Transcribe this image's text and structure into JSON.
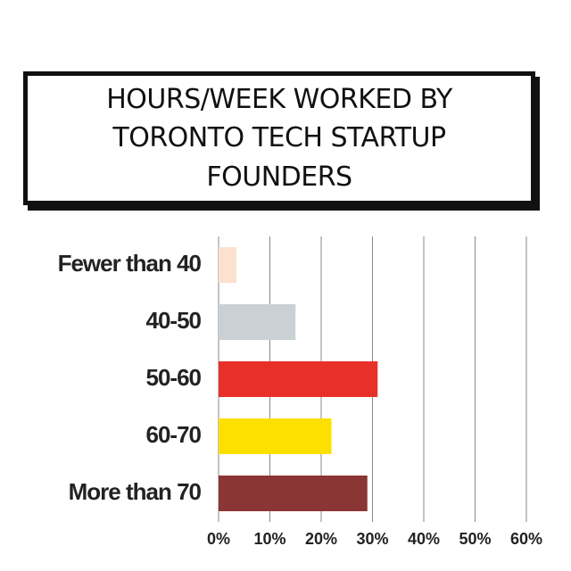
{
  "chart_data": {
    "type": "bar",
    "orientation": "horizontal",
    "title": "HOURS/WEEK WORKED BY TORONTO TECH STARTUP FOUNDERS",
    "categories": [
      "Fewer than 40",
      "40-50",
      "50-60",
      "60-70",
      "More than 70"
    ],
    "values": [
      3.5,
      15,
      31,
      22,
      29
    ],
    "colors": [
      "#fde1cf",
      "#c9d1d4",
      "#e8302a",
      "#fde000",
      "#8c3535"
    ],
    "xlim": [
      0,
      60
    ],
    "xticks": [
      {
        "value": 0,
        "label": "0%"
      },
      {
        "value": 10,
        "label": "10%"
      },
      {
        "value": 20,
        "label": "20%"
      },
      {
        "value": 30,
        "label": "30%"
      },
      {
        "value": 40,
        "label": "40%"
      },
      {
        "value": 50,
        "label": "50%"
      },
      {
        "value": 60,
        "label": "60%"
      }
    ],
    "grid": true
  }
}
